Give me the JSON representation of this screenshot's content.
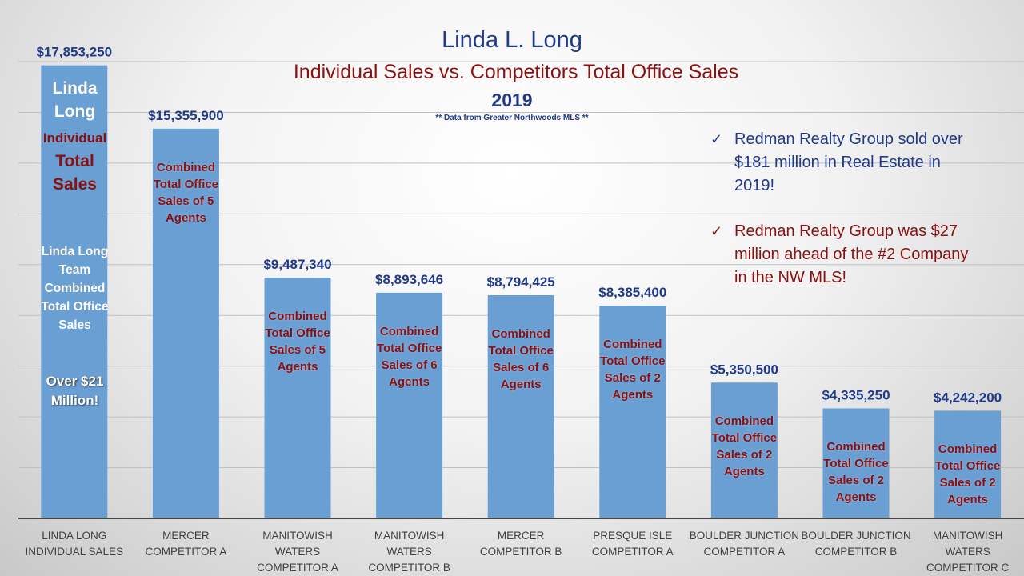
{
  "title": "Linda L. Long",
  "subtitle": "Individual Sales vs. Competitors Total Office Sales",
  "year": "2019",
  "source_note": "** Data from Greater Northwoods MLS **",
  "notes": [
    {
      "icon": "check-icon",
      "mark": "✓",
      "text": "Redman Realty Group sold over $181 million in Real Estate in 2019!",
      "color": "#1f3a8a"
    },
    {
      "icon": "check-icon",
      "mark": "✓",
      "text": "Redman Realty Group was $27 million ahead of the #2 Company in the NW MLS!",
      "color": "#8b1010"
    }
  ],
  "linda_bar_text": {
    "name": "Linda Long",
    "individual": "Individual",
    "total_sales": "Total Sales",
    "team": "Linda Long Team Combined Total Office Sales",
    "over": "Over $21 Million!"
  },
  "chart_data": {
    "type": "bar",
    "title": "Linda L. Long",
    "categories": [
      "LINDA LONG INDIVIDUAL SALES",
      "MERCER COMPETITOR A",
      "MANITOWISH WATERS COMPETITOR A",
      "MANITOWISH WATERS COMPETITOR B",
      "MERCER COMPETITOR B",
      "PRESQUE ISLE COMPETITOR A",
      "BOULDER JUNCTION COMPETITOR A",
      "BOULDER JUNCTION COMPETITOR B",
      "MANITOWISH WATERS COMPETITOR C"
    ],
    "values": [
      17853250,
      15355900,
      9487340,
      8893646,
      8794425,
      8385400,
      5350500,
      4335250,
      4242200
    ],
    "data_labels": [
      "$17,853,250",
      "$15,355,900",
      "$9,487,340",
      "$8,893,646",
      "$8,794,425",
      "$8,385,400",
      "$5,350,500",
      "$4,335,250",
      "$4,242,200"
    ],
    "bar_annotations": [
      "",
      "Combined Total Office Sales of 5 Agents",
      "Combined Total Office Sales of 5 Agents",
      "Combined Total Office Sales of 6 Agents",
      "Combined Total Office Sales of 6 Agents",
      "Combined Total Office Sales of 2 Agents",
      "Combined Total Office Sales of 2 Agents",
      "Combined Total Office Sales of 2 Agents",
      "Combined Total Office Sales of 2 Agents"
    ],
    "ylim": [
      0,
      18000000
    ],
    "ytick_step": 2000000,
    "y_tick_labels_shown": false,
    "grid": true,
    "legend": "none",
    "bar_color": "#6a9fd4",
    "xlabel": "",
    "ylabel": ""
  }
}
